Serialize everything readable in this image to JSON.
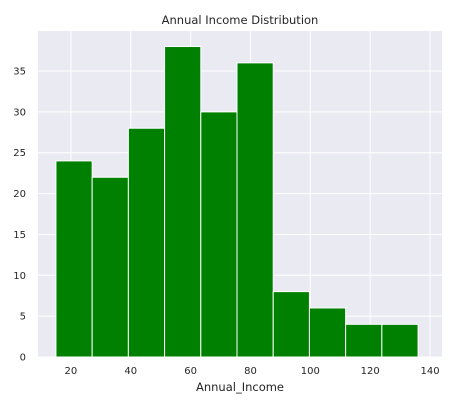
{
  "chart_data": {
    "type": "bar",
    "subtype": "histogram",
    "title": "Annual Income Distribution",
    "xlabel": "Annual_Income",
    "ylabel": "",
    "bin_edges": [
      15,
      27.1,
      39.2,
      51.3,
      63.4,
      75.5,
      87.6,
      99.7,
      111.8,
      123.9,
      136
    ],
    "counts": [
      24,
      22,
      28,
      38,
      30,
      36,
      8,
      6,
      4,
      4
    ],
    "xlim": [
      9,
      144
    ],
    "ylim": [
      0,
      39.9
    ],
    "xticks": [
      20,
      40,
      60,
      80,
      100,
      120,
      140
    ],
    "yticks": [
      0,
      5,
      10,
      15,
      20,
      25,
      30,
      35
    ],
    "grid": true,
    "colors": {
      "bar": "#008000",
      "edge": "#ffffff",
      "background": "#eaeaf2",
      "grid": "#ffffff"
    }
  }
}
